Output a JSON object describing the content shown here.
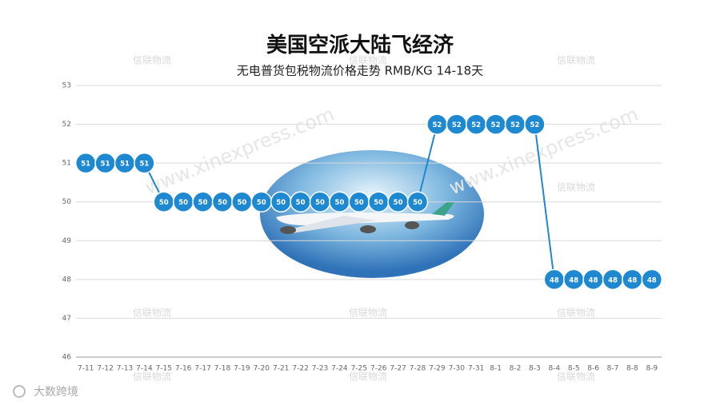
{
  "chart_data": {
    "type": "line",
    "title": "美国空派大陆飞经济",
    "subtitle": "无电普货包税物流价格走势 RMB/KG  14-18天",
    "categories": [
      "7-11",
      "7-12",
      "7-13",
      "7-14",
      "7-15",
      "7-16",
      "7-17",
      "7-18",
      "7-19",
      "7-20",
      "7-21",
      "7-22",
      "7-23",
      "7-24",
      "7-25",
      "7-26",
      "7-27",
      "7-28",
      "7-29",
      "7-30",
      "7-31",
      "8-1",
      "8-2",
      "8-3",
      "8-4",
      "8-5",
      "8-6",
      "8-7",
      "8-8",
      "8-9"
    ],
    "values": [
      51,
      51,
      51,
      51,
      50,
      50,
      50,
      50,
      50,
      50,
      50,
      50,
      50,
      50,
      50,
      50,
      50,
      50,
      52,
      52,
      52,
      52,
      52,
      52,
      48,
      48,
      48,
      48,
      48,
      48
    ],
    "color": "#1e88d0",
    "ylim": [
      46,
      53
    ],
    "yticks": [
      46,
      47,
      48,
      49,
      50,
      51,
      52,
      53
    ],
    "grid": true
  },
  "watermark": "信联物流",
  "watermark_url": "www.xinexpress.com",
  "footer_logo": "大数跨境"
}
